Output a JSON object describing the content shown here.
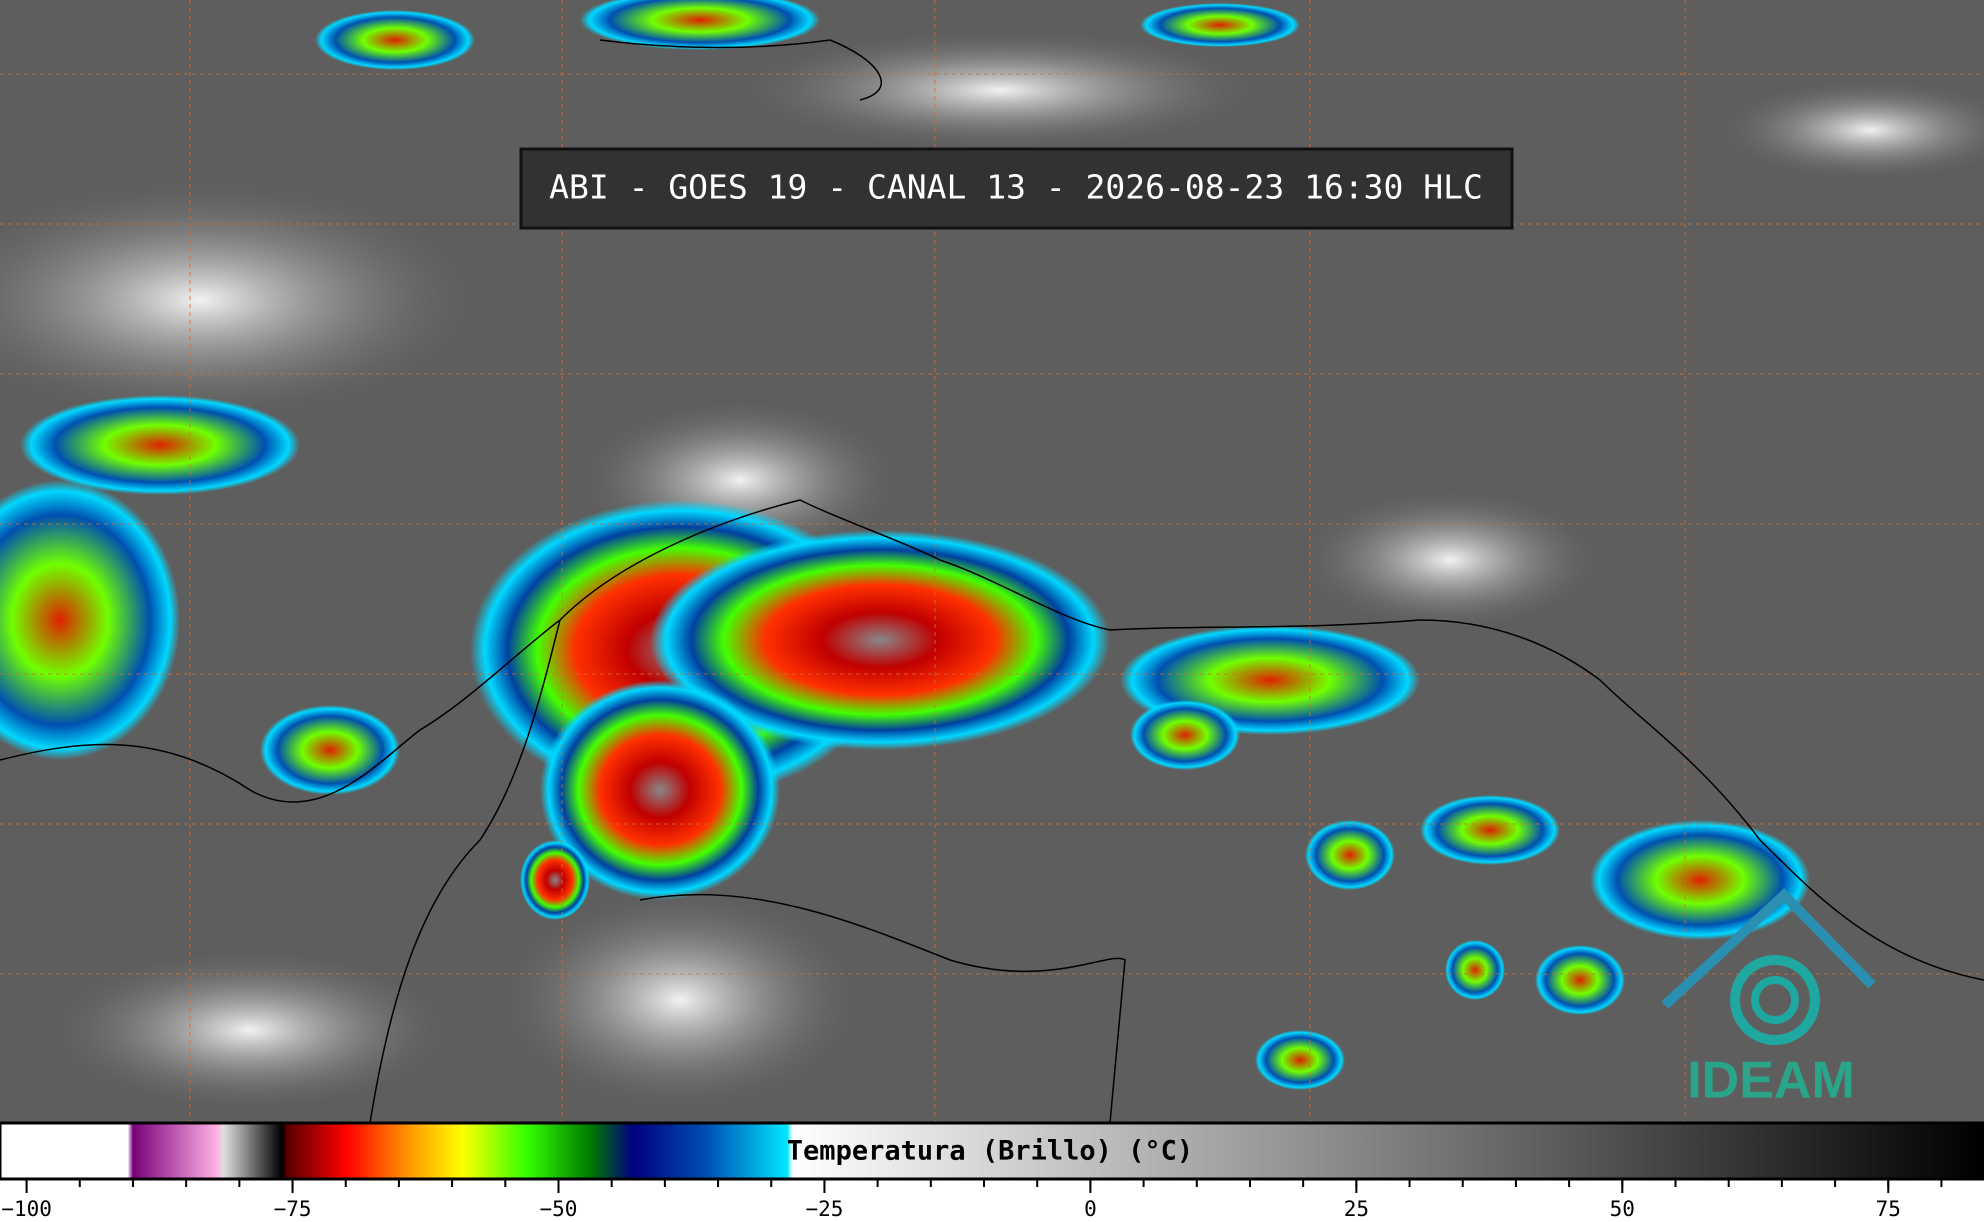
{
  "header": {
    "title": "ABI - GOES 19 - CANAL 13 - 2026-08-23 16:30 HLC"
  },
  "logo": {
    "text": "IDEAM"
  },
  "colorbar": {
    "label": "Temperatura (Brillo) (°C)",
    "xlim": [
      -102.5,
      84
    ],
    "xticks": [
      {
        "value": -100,
        "label": "−100"
      },
      {
        "value": -75,
        "label": "−75"
      },
      {
        "value": -50,
        "label": "−50"
      },
      {
        "value": -25,
        "label": "−25"
      },
      0,
      25,
      50,
      75
    ],
    "minor_tick_step": 5,
    "color_stops": [
      {
        "value": -102.5,
        "color": "#ffffff"
      },
      {
        "value": -90.5,
        "color": "#ffffff"
      },
      {
        "value": -90,
        "color": "#7a007a"
      },
      {
        "value": -82,
        "color": "#ffb4e6"
      },
      {
        "value": -81.5,
        "color": "#e0e0e0"
      },
      {
        "value": -76,
        "color": "#000000"
      },
      {
        "value": -75.5,
        "color": "#5a0000"
      },
      {
        "value": -70,
        "color": "#ff0000"
      },
      {
        "value": -64,
        "color": "#ff9900"
      },
      {
        "value": -59,
        "color": "#ffff00"
      },
      {
        "value": -53,
        "color": "#33ff00"
      },
      {
        "value": -47,
        "color": "#007a00"
      },
      {
        "value": -43,
        "color": "#000080"
      },
      {
        "value": -36,
        "color": "#0050b4"
      },
      {
        "value": -28.5,
        "color": "#00e6ff"
      },
      {
        "value": -28,
        "color": "#ffffff"
      },
      {
        "value": 84,
        "color": "#000000"
      }
    ]
  }
}
